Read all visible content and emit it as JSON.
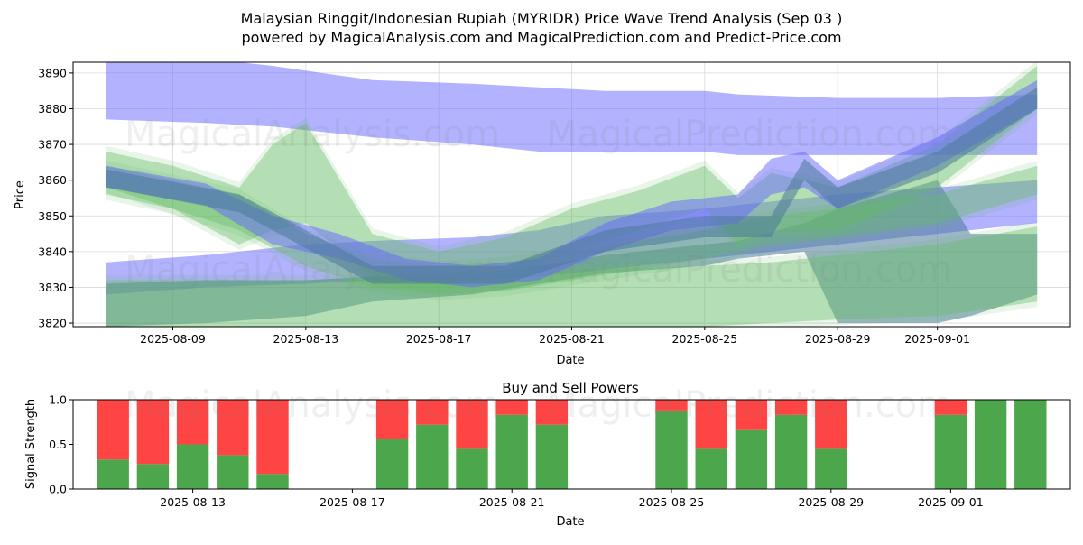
{
  "header": {
    "title_line1": "Malaysian Ringgit/Indonesian Rupiah (MYRIDR) Price Wave Trend Analysis (Sep 03 )",
    "title_line2": "powered by MagicalAnalysis.com and MagicalPrediction.com and Predict-Price.com"
  },
  "watermarks": [
    "MagicalAnalysis.com",
    "MagicalPrediction.com",
    "MagicalAnalysis.com",
    "MagicalPrediction.com",
    "MagicalAnalysis.com",
    "MagicalPrediction.com"
  ],
  "colors": {
    "blue_band": "#6666ff",
    "green_band": "#66bb66",
    "dark_band": "#4a7a99",
    "buy": "#4ca64c",
    "sell": "#ff4444"
  },
  "chart_data": [
    {
      "type": "area",
      "title": "",
      "xlabel": "Date",
      "ylabel": "Price",
      "x_ticks": [
        "2025-08-09",
        "2025-08-13",
        "2025-08-17",
        "2025-08-21",
        "2025-08-25",
        "2025-08-29",
        "2025-09-01"
      ],
      "y_ticks": [
        3820,
        3830,
        3840,
        3850,
        3860,
        3870,
        3880,
        3890
      ],
      "xlim": [
        "2025-08-06",
        "2025-09-05"
      ],
      "ylim": [
        3819,
        3893
      ],
      "grid": true,
      "bands": [
        {
          "color": "blue",
          "x": [
            "2025-08-07",
            "2025-08-10",
            "2025-08-12",
            "2025-08-15",
            "2025-08-18",
            "2025-08-20",
            "2025-08-22",
            "2025-08-25",
            "2025-08-26",
            "2025-08-29",
            "2025-09-01",
            "2025-09-04"
          ],
          "upper": [
            3895,
            3894,
            3892,
            3888,
            3887,
            3886,
            3885,
            3885,
            3884,
            3883,
            3883,
            3884
          ],
          "lower": [
            3877,
            3876,
            3875,
            3872,
            3870,
            3868,
            3868,
            3868,
            3867,
            3867,
            3867,
            3867
          ]
        },
        {
          "color": "blue",
          "x": [
            "2025-08-07",
            "2025-08-10",
            "2025-08-13",
            "2025-08-15",
            "2025-08-18",
            "2025-08-20",
            "2025-08-22",
            "2025-08-25",
            "2025-08-27",
            "2025-08-29",
            "2025-09-01",
            "2025-09-04"
          ],
          "upper": [
            3837,
            3839,
            3842,
            3843,
            3844,
            3846,
            3850,
            3852,
            3854,
            3856,
            3858,
            3860
          ],
          "lower": [
            3828,
            3830,
            3831,
            3832,
            3832,
            3833,
            3835,
            3838,
            3840,
            3842,
            3845,
            3848
          ]
        },
        {
          "color": "dark",
          "x": [
            "2025-08-07",
            "2025-08-10",
            "2025-08-13",
            "2025-08-15",
            "2025-08-18",
            "2025-08-20",
            "2025-08-22",
            "2025-08-25",
            "2025-08-26",
            "2025-08-28",
            "2025-08-29",
            "2025-09-01",
            "2025-09-02",
            "2025-09-04"
          ],
          "upper": [
            3831,
            3832,
            3832,
            3833,
            3834,
            3836,
            3839,
            3842,
            3843,
            3848,
            3852,
            3860,
            3845,
            3845
          ],
          "lower": [
            3819,
            3820,
            3822,
            3826,
            3828,
            3831,
            3834,
            3836,
            3838,
            3840,
            3820,
            3820,
            3822,
            3828
          ]
        },
        {
          "color": "green",
          "x": [
            "2025-08-07",
            "2025-08-10",
            "2025-08-13",
            "2025-08-15",
            "2025-08-18",
            "2025-08-20",
            "2025-08-22",
            "2025-08-25",
            "2025-08-27",
            "2025-08-29",
            "2025-09-01",
            "2025-09-04"
          ],
          "upper": [
            3832,
            3832,
            3832,
            3832,
            3833,
            3834,
            3835,
            3836,
            3837,
            3839,
            3842,
            3847
          ],
          "lower": [
            3819,
            3819,
            3819,
            3819,
            3819,
            3819,
            3819,
            3819,
            3820,
            3821,
            3822,
            3826
          ]
        },
        {
          "color": "green",
          "x": [
            "2025-08-07",
            "2025-08-09",
            "2025-08-11",
            "2025-08-12",
            "2025-08-13",
            "2025-08-15",
            "2025-08-17",
            "2025-08-19",
            "2025-08-21",
            "2025-08-23",
            "2025-08-25",
            "2025-08-26",
            "2025-08-27",
            "2025-08-29",
            "2025-09-01",
            "2025-09-04"
          ],
          "upper": [
            3868,
            3864,
            3858,
            3870,
            3876,
            3845,
            3840,
            3844,
            3852,
            3857,
            3864,
            3855,
            3862,
            3858,
            3870,
            3892
          ],
          "lower": [
            3858,
            3852,
            3842,
            3846,
            3848,
            3833,
            3830,
            3833,
            3840,
            3846,
            3852,
            3842,
            3846,
            3846,
            3858,
            3880
          ]
        },
        {
          "color": "green",
          "x": [
            "2025-08-07",
            "2025-08-09",
            "2025-08-11",
            "2025-08-13",
            "2025-08-15",
            "2025-08-17",
            "2025-08-19",
            "2025-08-21",
            "2025-08-23",
            "2025-08-25",
            "2025-08-27",
            "2025-08-29",
            "2025-09-01",
            "2025-09-04"
          ],
          "upper": [
            3864,
            3860,
            3856,
            3845,
            3838,
            3836,
            3837,
            3840,
            3843,
            3846,
            3850,
            3852,
            3856,
            3864
          ],
          "lower": [
            3856,
            3852,
            3846,
            3836,
            3830,
            3828,
            3829,
            3832,
            3835,
            3838,
            3842,
            3844,
            3848,
            3856
          ]
        },
        {
          "color": "blue",
          "x": [
            "2025-08-07",
            "2025-08-10",
            "2025-08-12",
            "2025-08-14",
            "2025-08-16",
            "2025-08-18",
            "2025-08-20",
            "2025-08-22",
            "2025-08-24",
            "2025-08-26",
            "2025-08-27",
            "2025-08-28",
            "2025-08-29",
            "2025-09-01",
            "2025-09-04"
          ],
          "upper": [
            3864,
            3859,
            3850,
            3845,
            3838,
            3836,
            3838,
            3848,
            3854,
            3856,
            3866,
            3868,
            3860,
            3872,
            3888
          ],
          "lower": [
            3858,
            3853,
            3842,
            3838,
            3832,
            3830,
            3832,
            3840,
            3846,
            3848,
            3856,
            3858,
            3852,
            3864,
            3880
          ]
        },
        {
          "color": "dark",
          "x": [
            "2025-08-07",
            "2025-08-11",
            "2025-08-15",
            "2025-08-19",
            "2025-08-22",
            "2025-08-25",
            "2025-08-27",
            "2025-08-28",
            "2025-08-29",
            "2025-09-01",
            "2025-09-04"
          ],
          "upper": [
            3863,
            3856,
            3836,
            3836,
            3846,
            3850,
            3850,
            3866,
            3858,
            3868,
            3886
          ],
          "lower": [
            3858,
            3851,
            3831,
            3831,
            3840,
            3844,
            3844,
            3860,
            3852,
            3862,
            3880
          ]
        }
      ]
    },
    {
      "type": "bar",
      "title": "Buy and Sell Powers",
      "xlabel": "Date",
      "ylabel": "Signal Strength",
      "x_ticks": [
        "2025-08-13",
        "2025-08-17",
        "2025-08-21",
        "2025-08-25",
        "2025-08-29",
        "2025-09-01"
      ],
      "y_ticks": [
        "0.0",
        "0.5",
        "1.0"
      ],
      "ylim": [
        0,
        1
      ],
      "xlim": [
        "2025-08-10",
        "2025-09-04"
      ],
      "dates": [
        "2025-08-11",
        "2025-08-12",
        "2025-08-13",
        "2025-08-14",
        "2025-08-15",
        "2025-08-18",
        "2025-08-19",
        "2025-08-20",
        "2025-08-21",
        "2025-08-22",
        "2025-08-25",
        "2025-08-26",
        "2025-08-27",
        "2025-08-28",
        "2025-08-29",
        "2025-09-01",
        "2025-09-02",
        "2025-09-03"
      ],
      "series": [
        {
          "name": "Buy",
          "values": [
            0.33,
            0.28,
            0.5,
            0.38,
            0.17,
            0.56,
            0.72,
            0.45,
            0.83,
            0.72,
            0.88,
            0.45,
            0.67,
            0.83,
            0.45,
            0.83,
            1.0,
            1.0
          ]
        },
        {
          "name": "Sell",
          "values": [
            0.67,
            0.72,
            0.5,
            0.62,
            0.83,
            0.44,
            0.28,
            0.55,
            0.17,
            0.28,
            0.12,
            0.55,
            0.33,
            0.17,
            0.55,
            0.17,
            0.0,
            0.0
          ]
        }
      ]
    }
  ]
}
